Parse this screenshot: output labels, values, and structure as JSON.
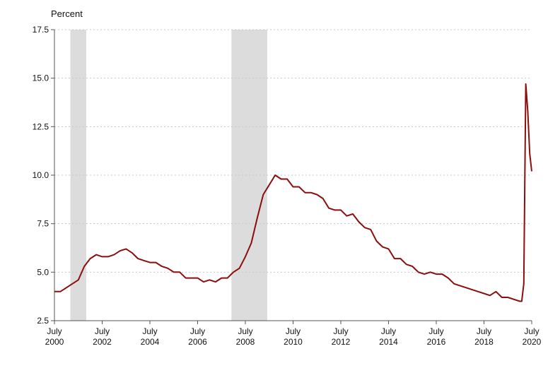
{
  "chart_data": {
    "type": "line",
    "ylabel": "Percent",
    "ylim": [
      2.5,
      17.5
    ],
    "yticks": [
      2.5,
      5.0,
      7.5,
      10.0,
      12.5,
      15.0,
      17.5
    ],
    "ytick_labels": [
      "2.5",
      "5.0",
      "7.5",
      "10.0",
      "12.5",
      "15.0",
      "17.5"
    ],
    "xlim": [
      "2000-07",
      "2020-07"
    ],
    "xticks": [
      {
        "value": "2000-07",
        "line1": "July",
        "line2": "2000"
      },
      {
        "value": "2002-07",
        "line1": "July",
        "line2": "2002"
      },
      {
        "value": "2004-07",
        "line1": "July",
        "line2": "2004"
      },
      {
        "value": "2006-07",
        "line1": "July",
        "line2": "2006"
      },
      {
        "value": "2008-07",
        "line1": "July",
        "line2": "2008"
      },
      {
        "value": "2010-07",
        "line1": "July",
        "line2": "2010"
      },
      {
        "value": "2012-07",
        "line1": "July",
        "line2": "2012"
      },
      {
        "value": "2014-07",
        "line1": "July",
        "line2": "2014"
      },
      {
        "value": "2016-07",
        "line1": "July",
        "line2": "2016"
      },
      {
        "value": "2018-07",
        "line1": "July",
        "line2": "2018"
      },
      {
        "value": "2020-07",
        "line1": "July",
        "line2": "2020"
      }
    ],
    "grid": {
      "horizontal": true,
      "style": "dotted"
    },
    "legend": "none",
    "recessions": [
      {
        "start": "2001-03",
        "end": "2001-11"
      },
      {
        "start": "2007-12",
        "end": "2009-06"
      }
    ],
    "series": [
      {
        "color": "#8b0e0e",
        "x": [
          "2000-07",
          "2000-10",
          "2001-01",
          "2001-04",
          "2001-07",
          "2001-10",
          "2002-01",
          "2002-04",
          "2002-07",
          "2002-10",
          "2003-01",
          "2003-04",
          "2003-07",
          "2003-10",
          "2004-01",
          "2004-04",
          "2004-07",
          "2004-10",
          "2005-01",
          "2005-04",
          "2005-07",
          "2005-10",
          "2006-01",
          "2006-04",
          "2006-07",
          "2006-10",
          "2007-01",
          "2007-04",
          "2007-07",
          "2007-10",
          "2008-01",
          "2008-04",
          "2008-07",
          "2008-10",
          "2009-01",
          "2009-04",
          "2009-07",
          "2009-10",
          "2010-01",
          "2010-04",
          "2010-07",
          "2010-10",
          "2011-01",
          "2011-04",
          "2011-07",
          "2011-10",
          "2012-01",
          "2012-04",
          "2012-07",
          "2012-10",
          "2013-01",
          "2013-04",
          "2013-07",
          "2013-10",
          "2014-01",
          "2014-04",
          "2014-07",
          "2014-10",
          "2015-01",
          "2015-04",
          "2015-07",
          "2015-10",
          "2016-01",
          "2016-04",
          "2016-07",
          "2016-10",
          "2017-01",
          "2017-04",
          "2017-07",
          "2017-10",
          "2018-01",
          "2018-04",
          "2018-07",
          "2018-10",
          "2019-01",
          "2019-04",
          "2019-07",
          "2019-10",
          "2020-01",
          "2020-02",
          "2020-03",
          "2020-04",
          "2020-05",
          "2020-06",
          "2020-07"
        ],
        "values": [
          4.0,
          4.0,
          4.2,
          4.4,
          4.6,
          5.3,
          5.7,
          5.9,
          5.8,
          5.8,
          5.9,
          6.1,
          6.2,
          6.0,
          5.7,
          5.6,
          5.5,
          5.5,
          5.3,
          5.2,
          5.0,
          5.0,
          4.7,
          4.7,
          4.7,
          4.5,
          4.6,
          4.5,
          4.7,
          4.7,
          5.0,
          5.2,
          5.8,
          6.5,
          7.8,
          9.0,
          9.5,
          10.0,
          9.8,
          9.8,
          9.4,
          9.4,
          9.1,
          9.1,
          9.0,
          8.8,
          8.3,
          8.2,
          8.2,
          7.9,
          8.0,
          7.6,
          7.3,
          7.2,
          6.6,
          6.3,
          6.2,
          5.7,
          5.7,
          5.4,
          5.3,
          5.0,
          4.9,
          5.0,
          4.9,
          4.9,
          4.7,
          4.4,
          4.3,
          4.2,
          4.1,
          4.0,
          3.9,
          3.8,
          4.0,
          3.7,
          3.7,
          3.6,
          3.5,
          3.5,
          4.4,
          14.7,
          13.3,
          11.1,
          10.2
        ]
      }
    ]
  }
}
